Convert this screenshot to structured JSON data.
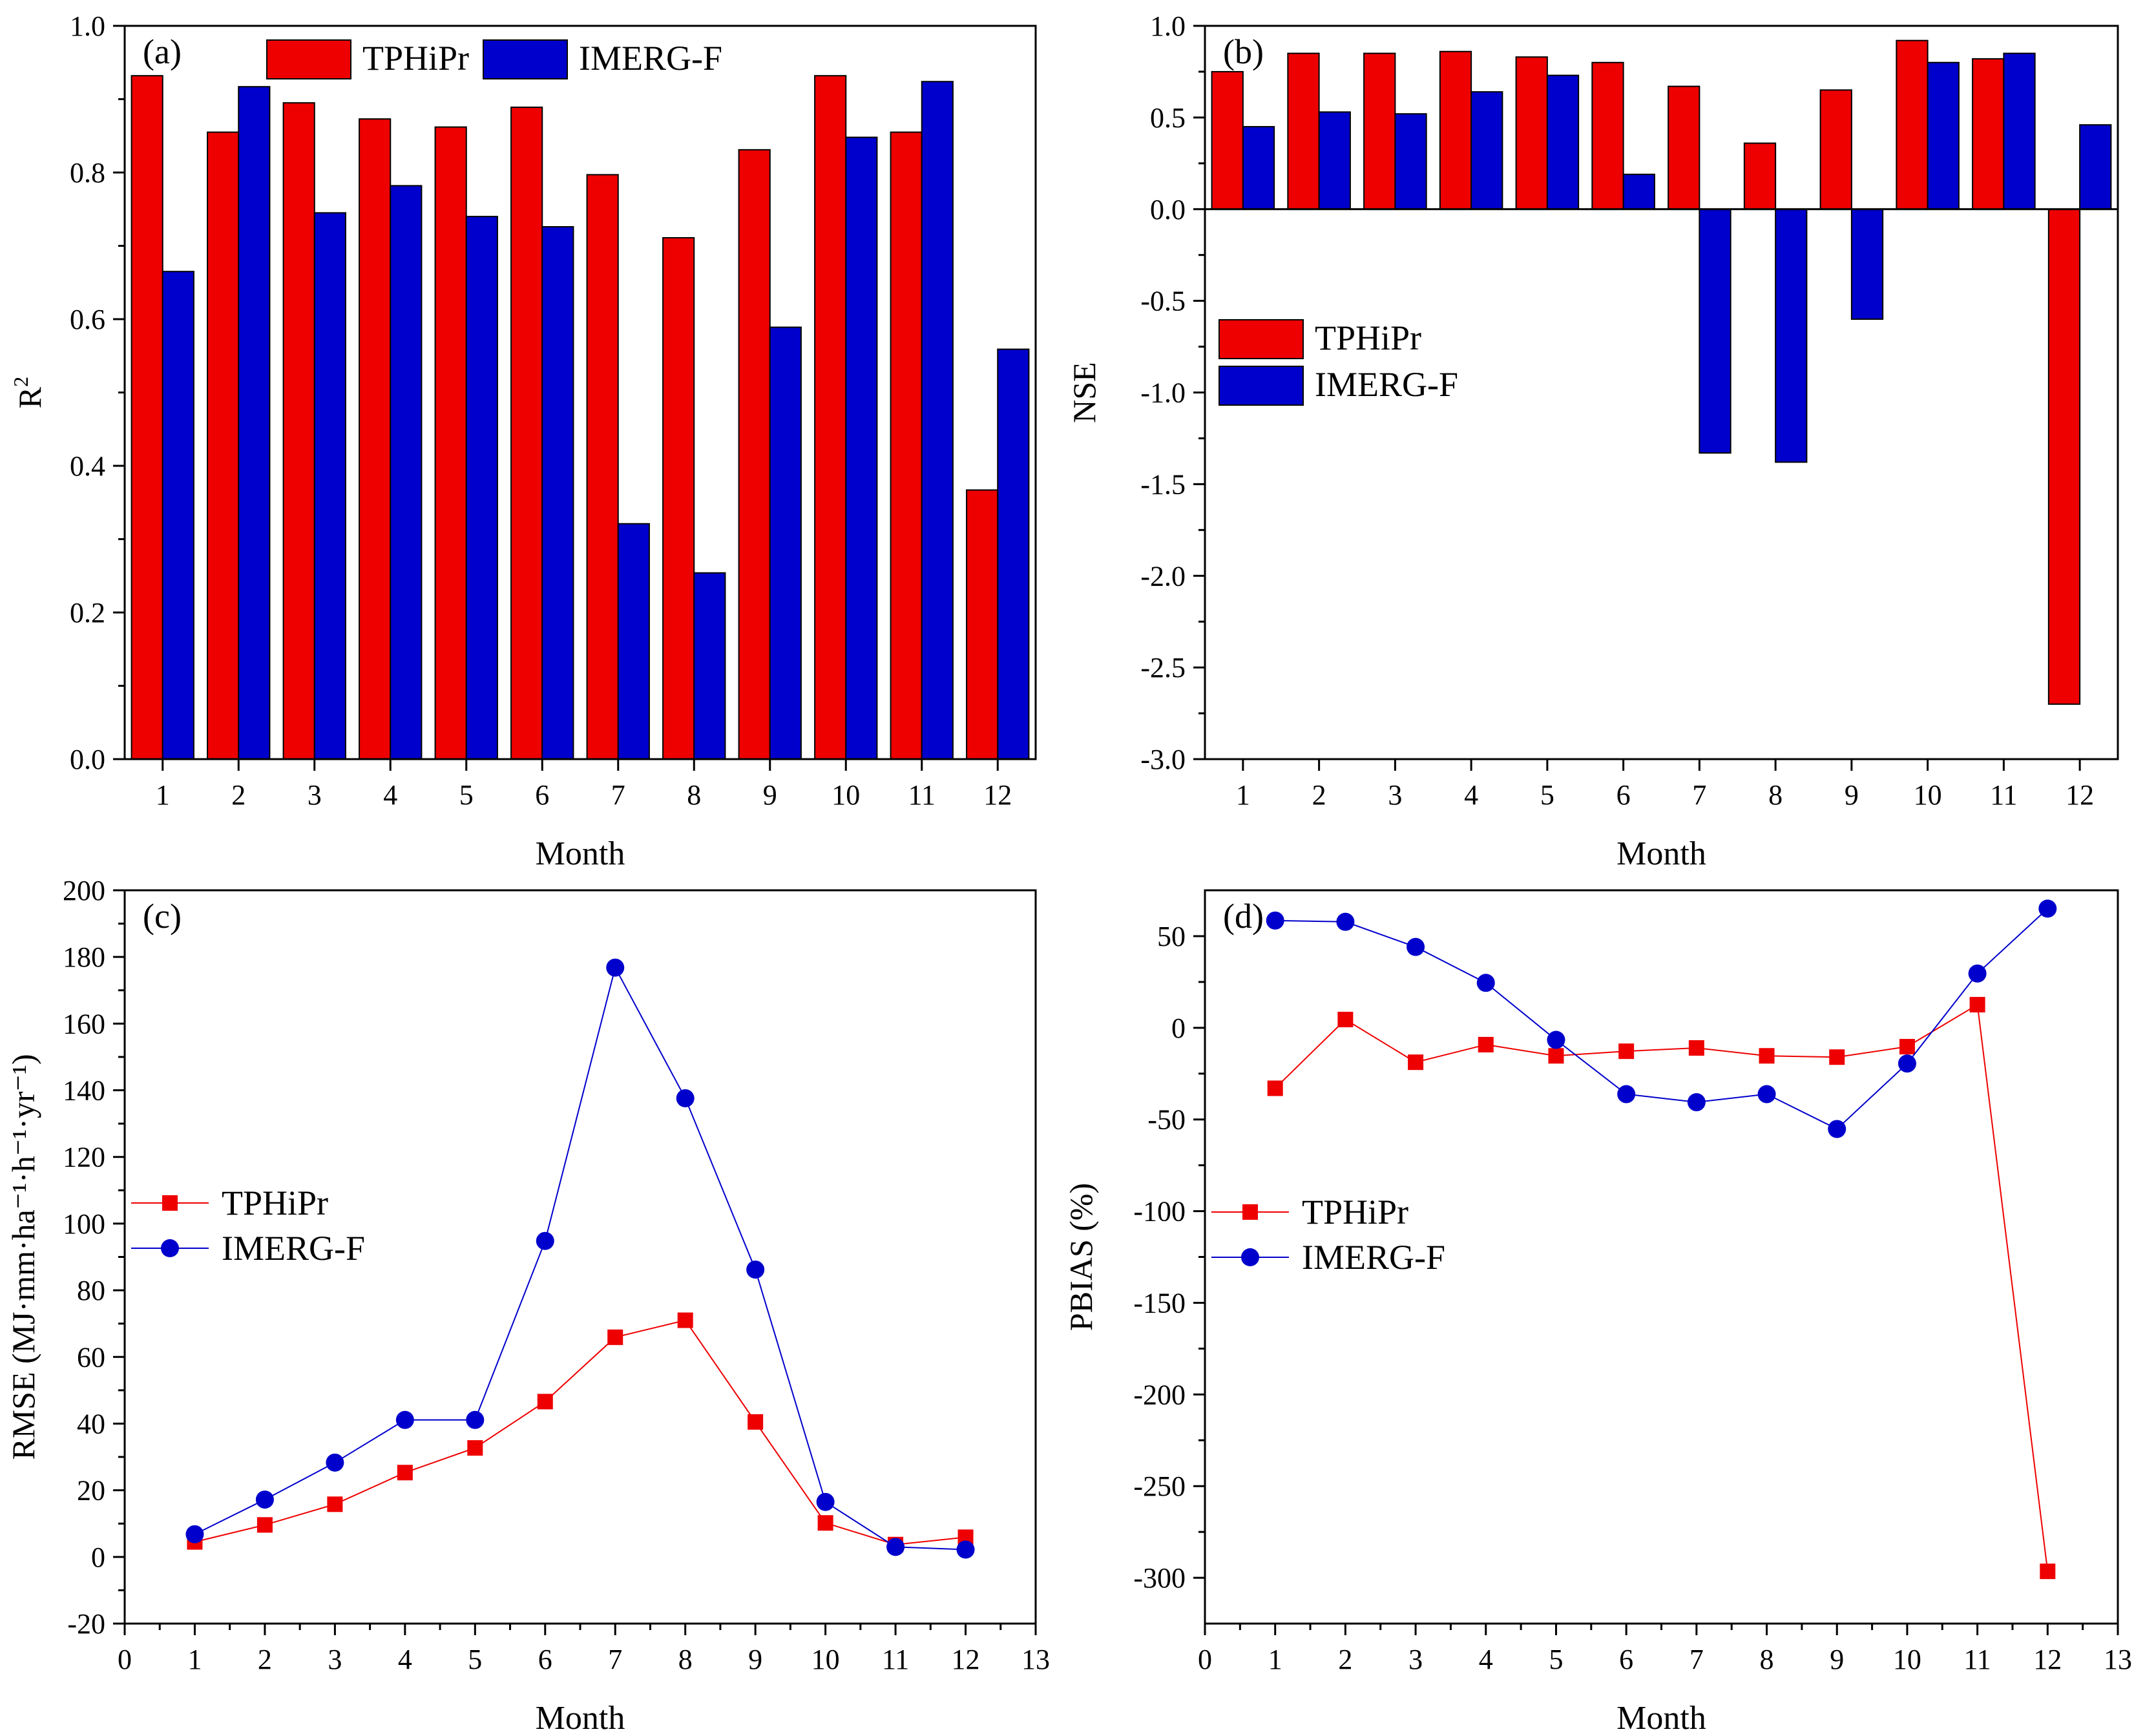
{
  "colors": {
    "tphipr": "#ee0000",
    "imerg": "#0000cc",
    "axis": "#000000",
    "background": "#ffffff"
  },
  "chart_data": [
    {
      "id": "a",
      "type": "bar",
      "panel_label": "(a)",
      "xlabel": "Month",
      "ylabel": "R",
      "ylabel_sup": "2",
      "categories": [
        "1",
        "2",
        "3",
        "4",
        "5",
        "6",
        "7",
        "8",
        "9",
        "10",
        "11",
        "12"
      ],
      "ylim": [
        0,
        1.0
      ],
      "yticks": [
        "0.0",
        "0.2",
        "0.4",
        "0.6",
        "0.8",
        "1.0"
      ],
      "legend_position": "top-center-horizontal",
      "series": [
        {
          "name": "TPHiPr",
          "values": [
            0.932,
            0.855,
            0.895,
            0.873,
            0.862,
            0.889,
            0.797,
            0.711,
            0.831,
            0.932,
            0.855,
            0.367
          ]
        },
        {
          "name": "IMERG-F",
          "values": [
            0.665,
            0.917,
            0.745,
            0.782,
            0.74,
            0.726,
            0.321,
            0.254,
            0.589,
            0.848,
            0.924,
            0.559
          ]
        }
      ]
    },
    {
      "id": "b",
      "type": "bar",
      "panel_label": "(b)",
      "xlabel": "Month",
      "ylabel": "NSE",
      "categories": [
        "1",
        "2",
        "3",
        "4",
        "5",
        "6",
        "7",
        "8",
        "9",
        "10",
        "11",
        "12"
      ],
      "ylim": [
        -3.0,
        1.0
      ],
      "yticks": [
        "-3.0",
        "-2.5",
        "-2.0",
        "-1.5",
        "-1.0",
        "-0.5",
        "0.0",
        "0.5",
        "1.0"
      ],
      "legend_position": "middle-left",
      "series": [
        {
          "name": "TPHiPr",
          "values": [
            0.75,
            0.85,
            0.85,
            0.86,
            0.83,
            0.8,
            0.67,
            0.36,
            0.65,
            0.92,
            0.82,
            -2.7
          ]
        },
        {
          "name": "IMERG-F",
          "values": [
            0.45,
            0.53,
            0.52,
            0.64,
            0.73,
            0.19,
            -1.33,
            -1.38,
            -0.6,
            0.8,
            0.85,
            0.46
          ]
        }
      ]
    },
    {
      "id": "c",
      "type": "line",
      "panel_label": "(c)",
      "xlabel": "Month",
      "ylabel": "RMSE (MJ·mm·ha⁻¹·h⁻¹·yr⁻¹)",
      "x": [
        1,
        2,
        3,
        4,
        5,
        6,
        7,
        8,
        9,
        10,
        11,
        12
      ],
      "xlim": [
        0,
        13
      ],
      "xticks": [
        "0",
        "1",
        "2",
        "3",
        "4",
        "5",
        "6",
        "7",
        "8",
        "9",
        "10",
        "11",
        "12",
        "13"
      ],
      "ylim": [
        -20,
        200
      ],
      "yticks": [
        "-20",
        "0",
        "20",
        "40",
        "60",
        "80",
        "100",
        "120",
        "140",
        "160",
        "180",
        "200"
      ],
      "legend_position": "middle-left",
      "series": [
        {
          "name": "TPHiPr",
          "marker": "square",
          "values": [
            4.5,
            9.6,
            15.8,
            25.3,
            32.7,
            46.6,
            65.9,
            71.0,
            40.5,
            10.2,
            3.7,
            5.9
          ]
        },
        {
          "name": "IMERG-F",
          "marker": "circle",
          "values": [
            6.8,
            17.2,
            28.3,
            41.1,
            41.1,
            94.8,
            176.8,
            137.6,
            86.2,
            16.5,
            3.0,
            2.2
          ]
        }
      ]
    },
    {
      "id": "d",
      "type": "line",
      "panel_label": "(d)",
      "xlabel": "Month",
      "ylabel": "PBIAS (%)",
      "x": [
        1,
        2,
        3,
        4,
        5,
        6,
        7,
        8,
        9,
        10,
        11,
        12
      ],
      "xlim": [
        0,
        13
      ],
      "xticks": [
        "0",
        "1",
        "2",
        "3",
        "4",
        "5",
        "6",
        "7",
        "8",
        "9",
        "10",
        "11",
        "12",
        "13"
      ],
      "ylim": [
        -325,
        75
      ],
      "yticks": [
        "-300",
        "-250",
        "-200",
        "-150",
        "-100",
        "-50",
        "0",
        "50"
      ],
      "legend_position": "middle-left",
      "series": [
        {
          "name": "TPHiPr",
          "marker": "square",
          "values": [
            -33.0,
            4.5,
            -18.8,
            -9.2,
            -15.3,
            -12.8,
            -11.0,
            -15.3,
            -16.0,
            -10.3,
            12.6,
            -296.5
          ]
        },
        {
          "name": "IMERG-F",
          "marker": "circle",
          "values": [
            58.5,
            57.8,
            44.1,
            24.5,
            -6.6,
            -36.2,
            -40.6,
            -36.2,
            -55.2,
            -19.5,
            29.6,
            65.0
          ]
        }
      ]
    }
  ]
}
